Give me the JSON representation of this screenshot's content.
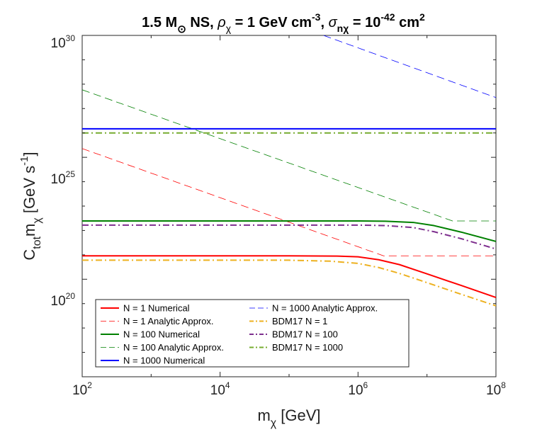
{
  "chart_data": {
    "type": "line",
    "title": "1.5 M⊙ NS, ρχ = 1 GeV cm⁻³, σnχ = 10⁻⁴² cm²",
    "title_parts": {
      "main": "1.5 M",
      "sun_sub": "⊙",
      "ns": " NS, ",
      "rho": "ρ",
      "chi": "χ",
      "rho_val": " = 1 GeV cm",
      "rho_exp": "-3",
      "sep": ", ",
      "sigma": "σ",
      "sigma_sub": "nχ",
      "sigma_val": " = 10",
      "sigma_exp": "-42",
      "unit": " cm",
      "unit_exp": "2"
    },
    "xlabel": "mχ [GeV]",
    "xlabel_parts": {
      "m": "m",
      "sub": "χ",
      "unit": " [GeV]"
    },
    "ylabel": "Ctot mχ [GeV s⁻¹]",
    "ylabel_parts": {
      "c": "C",
      "c_sub": "tot",
      "m": "m",
      "m_sub": "χ",
      "unit": " [GeV s",
      "unit_exp": "-1",
      "close": "]"
    },
    "xscale": "log",
    "yscale": "log",
    "xlim_log10": [
      2,
      8
    ],
    "ylim_log10": [
      16,
      30
    ],
    "xtick_labels": [
      {
        "base": "10",
        "exp": "2",
        "log10": 2
      },
      {
        "base": "10",
        "exp": "4",
        "log10": 4
      },
      {
        "base": "10",
        "exp": "6",
        "log10": 6
      },
      {
        "base": "10",
        "exp": "8",
        "log10": 8
      }
    ],
    "ytick_labels": [
      {
        "base": "10",
        "exp": "20",
        "log10": 20
      },
      {
        "base": "10",
        "exp": "25",
        "log10": 25
      },
      {
        "base": "10",
        "exp": "30",
        "log10": 30
      }
    ],
    "grid": false,
    "legend_placement": "bottom-left",
    "series": [
      {
        "name": "N = 1 Numerical",
        "color": "#ff0000",
        "dash": "solid",
        "width": 2,
        "x_log10": [
          2,
          5,
          5.7,
          6,
          6.3,
          6.6,
          7,
          7.5,
          8
        ],
        "y_log10": [
          20.96,
          20.96,
          20.95,
          20.92,
          20.8,
          20.6,
          20.22,
          19.74,
          19.25
        ]
      },
      {
        "name": "N = 1 Analytic Approx.",
        "color": "#ff0000",
        "dash": "long-dash",
        "width": 0.8,
        "x_log10": [
          2,
          6.37,
          8
        ],
        "y_log10": [
          25.36,
          20.96,
          20.96
        ]
      },
      {
        "name": "N = 100 Numerical",
        "color": "#008000",
        "dash": "solid",
        "width": 2,
        "x_log10": [
          2,
          6,
          6.4,
          6.8,
          7.1,
          7.5,
          8
        ],
        "y_log10": [
          22.39,
          22.39,
          22.38,
          22.33,
          22.2,
          21.93,
          21.55
        ]
      },
      {
        "name": "N = 100 Analytic Approx.",
        "color": "#008000",
        "dash": "long-dash",
        "width": 0.8,
        "x_log10": [
          2,
          7.37,
          8
        ],
        "y_log10": [
          27.77,
          22.39,
          22.39
        ]
      },
      {
        "name": "N = 1000 Numerical",
        "color": "#0000ff",
        "dash": "solid",
        "width": 2,
        "x_log10": [
          2,
          8
        ],
        "y_log10": [
          26.17,
          26.17
        ]
      },
      {
        "name": "N = 1000 Analytic Approx.",
        "color": "#0000ff",
        "dash": "long-dash",
        "width": 0.8,
        "x_log10": [
          5.5,
          8
        ],
        "y_log10": [
          30.0,
          27.45
        ]
      },
      {
        "name": "BDM17 N = 1",
        "color": "#edb120",
        "dash": "dash-dot",
        "width": 2,
        "x_log10": [
          2,
          5,
          5.6,
          6,
          6.3,
          6.6,
          7,
          7.5,
          8
        ],
        "y_log10": [
          20.78,
          20.78,
          20.74,
          20.65,
          20.48,
          20.24,
          19.86,
          19.38,
          18.91
        ]
      },
      {
        "name": "BDM17 N = 100",
        "color": "#7e2f8e",
        "dash": "dash-dot",
        "width": 2,
        "x_log10": [
          2,
          6,
          6.4,
          6.8,
          7.1,
          7.5,
          8
        ],
        "y_log10": [
          22.22,
          22.22,
          22.2,
          22.12,
          21.95,
          21.66,
          21.24
        ]
      },
      {
        "name": "BDM17 N = 1000",
        "color": "#77ac30",
        "dash": "dash-dot",
        "width": 2,
        "x_log10": [
          2,
          8
        ],
        "y_log10": [
          26.0,
          26.0
        ]
      }
    ]
  }
}
